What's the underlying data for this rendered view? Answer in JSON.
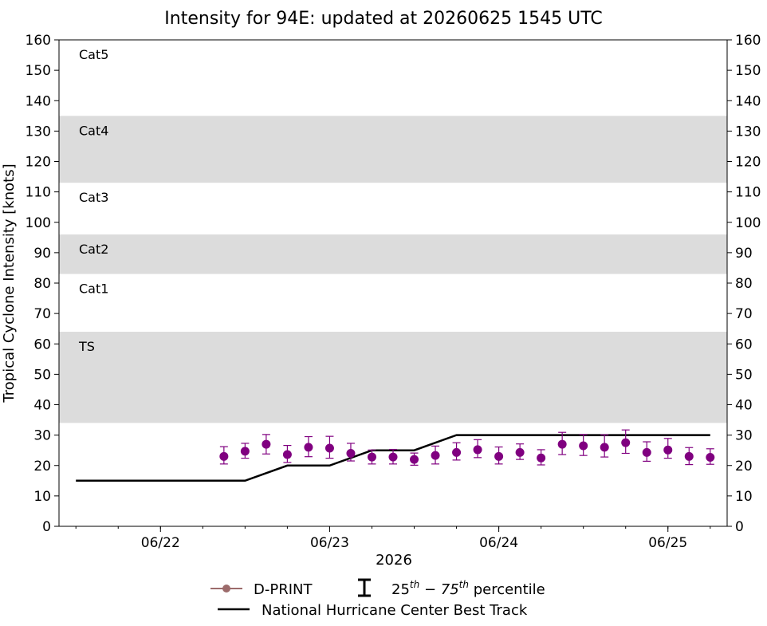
{
  "chart_data": {
    "type": "scatter",
    "title": "Intensity for 94E: updated at 20260625 1545 UTC",
    "ylabel": "Tropical Cyclone Intensity [knots]",
    "xlabel": "2026",
    "ylim": [
      0,
      160
    ],
    "yticks": [
      0,
      10,
      20,
      30,
      40,
      50,
      60,
      70,
      80,
      90,
      100,
      110,
      120,
      130,
      140,
      150,
      160
    ],
    "xlim_days": [
      21.4,
      25.35
    ],
    "xticks": [
      {
        "day": 22,
        "label": "06/22"
      },
      {
        "day": 23,
        "label": "06/23"
      },
      {
        "day": 24,
        "label": "06/24"
      },
      {
        "day": 25,
        "label": "06/25"
      }
    ],
    "bands": [
      {
        "label": "TS",
        "range": [
          34,
          64
        ],
        "shaded": true
      },
      {
        "label": "Cat1",
        "range": [
          64,
          83
        ],
        "shaded": false
      },
      {
        "label": "Cat2",
        "range": [
          83,
          96
        ],
        "shaded": true
      },
      {
        "label": "Cat3",
        "range": [
          96,
          113
        ],
        "shaded": false
      },
      {
        "label": "Cat4",
        "range": [
          113,
          135
        ],
        "shaded": true
      },
      {
        "label": "Cat5",
        "range": [
          135,
          160
        ],
        "shaded": false
      }
    ],
    "series": [
      {
        "name": "D-PRINT",
        "color": "#800080",
        "points": [
          {
            "day": 22.375,
            "y": 23,
            "lo": 20.5,
            "hi": 26.2
          },
          {
            "day": 22.5,
            "y": 24.7,
            "lo": 22.4,
            "hi": 27.3
          },
          {
            "day": 22.625,
            "y": 27,
            "lo": 23.8,
            "hi": 30.2
          },
          {
            "day": 22.75,
            "y": 23.6,
            "lo": 21,
            "hi": 26.6
          },
          {
            "day": 22.875,
            "y": 26,
            "lo": 22.9,
            "hi": 29.5
          },
          {
            "day": 23.0,
            "y": 25.7,
            "lo": 22.4,
            "hi": 29.6
          },
          {
            "day": 23.125,
            "y": 24,
            "lo": 21.5,
            "hi": 27.3
          },
          {
            "day": 23.25,
            "y": 22.8,
            "lo": 20.5,
            "hi": 25.1
          },
          {
            "day": 23.375,
            "y": 22.8,
            "lo": 20.5,
            "hi": 25.3
          },
          {
            "day": 23.5,
            "y": 22,
            "lo": 20.1,
            "hi": 24.1
          },
          {
            "day": 23.625,
            "y": 23.3,
            "lo": 20.5,
            "hi": 26.4
          },
          {
            "day": 23.75,
            "y": 24.3,
            "lo": 21.8,
            "hi": 27.5
          },
          {
            "day": 23.875,
            "y": 25.2,
            "lo": 22.6,
            "hi": 28.5
          },
          {
            "day": 24.0,
            "y": 23,
            "lo": 20.5,
            "hi": 26.1
          },
          {
            "day": 24.125,
            "y": 24.3,
            "lo": 22,
            "hi": 27.1
          },
          {
            "day": 24.25,
            "y": 22.5,
            "lo": 20.2,
            "hi": 25.2
          },
          {
            "day": 24.375,
            "y": 27,
            "lo": 23.6,
            "hi": 30.9
          },
          {
            "day": 24.5,
            "y": 26.5,
            "lo": 23.3,
            "hi": 30.2
          },
          {
            "day": 24.625,
            "y": 26,
            "lo": 22.8,
            "hi": 30.1
          },
          {
            "day": 24.75,
            "y": 27.5,
            "lo": 24,
            "hi": 31.7
          },
          {
            "day": 24.875,
            "y": 24.3,
            "lo": 21.4,
            "hi": 27.8
          },
          {
            "day": 25.0,
            "y": 25.1,
            "lo": 22.4,
            "hi": 28.9
          },
          {
            "day": 25.125,
            "y": 23,
            "lo": 20.3,
            "hi": 25.9
          },
          {
            "day": 25.25,
            "y": 22.7,
            "lo": 20.4,
            "hi": 25.5
          }
        ]
      },
      {
        "name": "National Hurricane Center Best Track",
        "color": "#000000",
        "points": [
          {
            "day": 21.5,
            "y": 15
          },
          {
            "day": 22.5,
            "y": 15
          },
          {
            "day": 22.75,
            "y": 20
          },
          {
            "day": 23.0,
            "y": 20
          },
          {
            "day": 23.25,
            "y": 25
          },
          {
            "day": 23.5,
            "y": 25
          },
          {
            "day": 23.75,
            "y": 30
          },
          {
            "day": 25.25,
            "y": 30
          }
        ]
      }
    ],
    "legend": {
      "placement": "bottom",
      "dprint_label": "D-PRINT",
      "dprint_marker_color": "#9c6b6b",
      "percentile_pre": "25",
      "percentile_sup1": "th",
      "percentile_mid": " − 75",
      "percentile_sup2": "th",
      "percentile_post": " percentile",
      "best_track_label": "National Hurricane Center Best Track"
    }
  }
}
